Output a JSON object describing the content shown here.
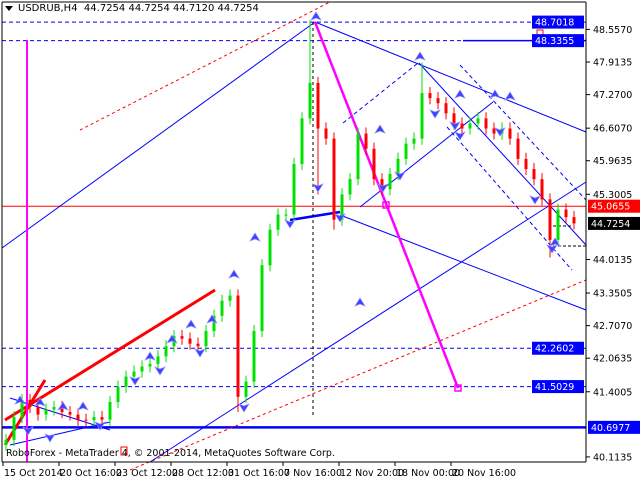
{
  "header": {
    "symbol_timeframe": "USDRUB,H4",
    "ohlc": "44.7254 44.7254 44.7120 44.7254"
  },
  "copyright": "RoboForex - MetaTrader 4, © 2001-2014, MetaQuotes Software Corp.",
  "chart_data": {
    "type": "candlestick",
    "symbol": "USDRUB",
    "timeframe": "H4",
    "ylim": [
      40.0,
      49.1
    ],
    "y_ticks": [
      "48.5570",
      "47.9135",
      "47.2700",
      "46.6070",
      "45.9635",
      "45.3005",
      "44.0135",
      "43.3505",
      "42.7070",
      "42.0635",
      "41.4005",
      "40.1135"
    ],
    "x_ticks": [
      "15 Oct 2014",
      "20 Oct 16:00",
      "23 Oct 12:00",
      "28 Oct 12:00",
      "31 Oct 16:00",
      "7 Nov 16:00",
      "12 Nov 20:00",
      "18 Nov 00:00",
      "20 Nov 16:00"
    ],
    "closes": [
      40.45,
      40.9,
      41.24,
      41.1,
      40.95,
      41.05,
      41.1,
      41.0,
      40.95,
      40.85,
      40.84,
      40.9,
      40.85,
      41.2,
      41.5,
      41.7,
      41.8,
      41.9,
      41.95,
      42.1,
      42.3,
      42.5,
      42.45,
      42.35,
      42.3,
      42.6,
      42.9,
      43.2,
      43.3,
      41.3,
      41.6,
      42.6,
      43.9,
      44.6,
      44.9,
      44.9,
      45.9,
      46.8,
      47.5,
      46.6,
      46.4,
      44.8,
      45.3,
      45.6,
      46.5,
      46.2,
      45.6,
      45.4,
      45.7,
      46.0,
      46.3,
      46.4,
      47.3,
      47.2,
      47.1,
      46.9,
      46.7,
      46.6,
      46.7,
      46.8,
      46.6,
      46.5,
      46.6,
      46.4,
      46.0,
      45.8,
      45.6,
      45.2,
      44.4,
      45.0,
      44.85,
      44.7254
    ],
    "wick_extremes": [
      {
        "candle": 29,
        "low": 41.0
      },
      {
        "candle": 38,
        "high": 48.74
      },
      {
        "candle": 39,
        "low": 45.3
      },
      {
        "candle": 41,
        "low": 44.6
      },
      {
        "candle": 52,
        "high": 47.9
      },
      {
        "candle": 68,
        "low": 44.05
      }
    ],
    "levels": [
      {
        "price": "48.7018",
        "style": "dashed",
        "color": "#0000ff"
      },
      {
        "price": "48.3355",
        "style": "dashed",
        "color": "#0000ff"
      },
      {
        "price": "45.0655",
        "style": "solid",
        "color": "#ff0000"
      },
      {
        "price": "42.2602",
        "style": "dashed",
        "color": "#0000ff"
      },
      {
        "price": "41.5029",
        "style": "dashed",
        "color": "#0000ff"
      },
      {
        "price": "40.6977",
        "style": "solid-thick",
        "color": "#0000ff"
      }
    ],
    "current_price": "44.7254",
    "colors": {
      "bull": "#00e000",
      "bear": "#ff0000",
      "trendline": "#0000ff",
      "projection": "#ff00ff",
      "bid_badge": "#000000"
    }
  }
}
